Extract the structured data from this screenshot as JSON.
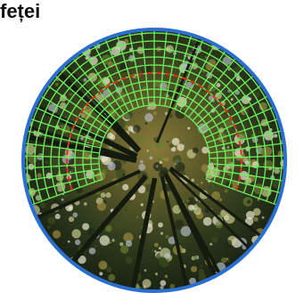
{
  "caption": "feței"
}
